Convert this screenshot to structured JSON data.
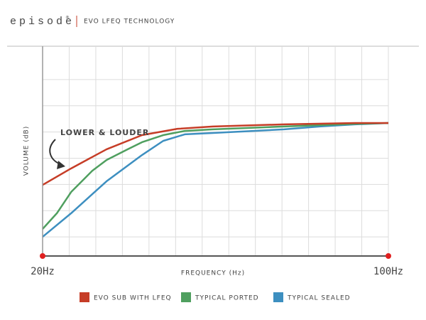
{
  "header": {
    "brand": "episode",
    "mark": "®",
    "tagline": "EVO LFEQ TECHNOLOGY"
  },
  "chart_data": {
    "type": "line",
    "annotation": "LOWER & LOUDER",
    "x_label": "FREQUENCY (Hz)",
    "y_label": "VOLUME (dB)",
    "xlim": [
      20,
      100
    ],
    "xticks": [
      {
        "value": 20,
        "label": "20Hz"
      },
      {
        "value": 100,
        "label": "100Hz"
      }
    ],
    "ylim": [
      0,
      8
    ],
    "grid": true,
    "series": [
      {
        "name": "EVO SUB WITH LFEQ",
        "color": "#c63d27",
        "x": [
          20,
          26.6,
          34.8,
          43,
          51.2,
          59.4,
          75.9,
          92.3,
          100
        ],
        "values": [
          2.71,
          3.34,
          4.07,
          4.61,
          4.85,
          4.94,
          5.02,
          5.07,
          5.07
        ]
      },
      {
        "name": "TYPICAL PORTED",
        "color": "#4f9f5f",
        "x": [
          20,
          23.3,
          26.6,
          31.5,
          34.8,
          39.7,
          43,
          47.9,
          52.9,
          59.4,
          75.9,
          92.3,
          100
        ],
        "values": [
          1.03,
          1.63,
          2.44,
          3.25,
          3.66,
          4.07,
          4.34,
          4.61,
          4.77,
          4.83,
          4.94,
          5.04,
          5.07
        ]
      },
      {
        "name": "TYPICAL SEALED",
        "color": "#3d8fc0",
        "x": [
          20,
          26.6,
          34.8,
          43,
          47.9,
          52.9,
          59.4,
          75.9,
          84.1,
          92.3,
          100
        ],
        "values": [
          0.73,
          1.63,
          2.85,
          3.85,
          4.39,
          4.64,
          4.69,
          4.83,
          4.94,
          5.02,
          5.07
        ]
      }
    ]
  }
}
